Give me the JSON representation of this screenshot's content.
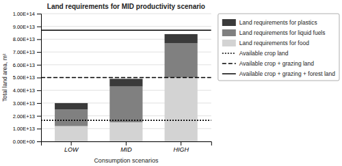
{
  "chart_data": {
    "type": "bar",
    "title": "Land requirements for MID productivity scenario",
    "xlabel": "Consumption scenarios",
    "ylabel": "Total land area, m²",
    "categories": [
      "LOW",
      "MID",
      "HIGH"
    ],
    "stacked": true,
    "series": [
      {
        "name": "Land requirements for food",
        "color": "#d3d3d3",
        "values": [
          12000000000000.0,
          15000000000000.0,
          50000000000000.0
        ]
      },
      {
        "name": "Land requirements for liquid fuels",
        "color": "#808080",
        "values": [
          13000000000000.0,
          28000000000000.0,
          27000000000000.0
        ]
      },
      {
        "name": "Land requirements for plastics",
        "color": "#3a3a3a",
        "values": [
          5000000000000.0,
          6000000000000.0,
          7000000000000.0
        ]
      }
    ],
    "reference_lines": [
      {
        "name": "Available crop land",
        "value": 16500000000000.0,
        "line_style": "dotted",
        "color": "#000000"
      },
      {
        "name": "Available crop + grazing land",
        "value": 50000000000000.0,
        "line_style": "dashed",
        "color": "#000000"
      },
      {
        "name": "Available crop + grazing + forest land",
        "value": 87000000000000.0,
        "line_style": "solid",
        "color": "#000000"
      }
    ],
    "ylim": [
      0,
      100000000000000.0
    ],
    "yticks": [
      {
        "value": 0,
        "label": "0.00E+00"
      },
      {
        "value": 10000000000000.0,
        "label": "1.00E+13"
      },
      {
        "value": 20000000000000.0,
        "label": "2.00E+13"
      },
      {
        "value": 30000000000000.0,
        "label": "3.00E+13"
      },
      {
        "value": 40000000000000.0,
        "label": "4.00E+13"
      },
      {
        "value": 50000000000000.0,
        "label": "5.00E+13"
      },
      {
        "value": 60000000000000.0,
        "label": "6.00E+13"
      },
      {
        "value": 70000000000000.0,
        "label": "7.00E+13"
      },
      {
        "value": 80000000000000.0,
        "label": "8.00E+13"
      },
      {
        "value": 90000000000000.0,
        "label": "9.00E+13"
      },
      {
        "value": 100000000000000.0,
        "label": "1.00E+14"
      }
    ],
    "grid": true,
    "legend": "right"
  }
}
